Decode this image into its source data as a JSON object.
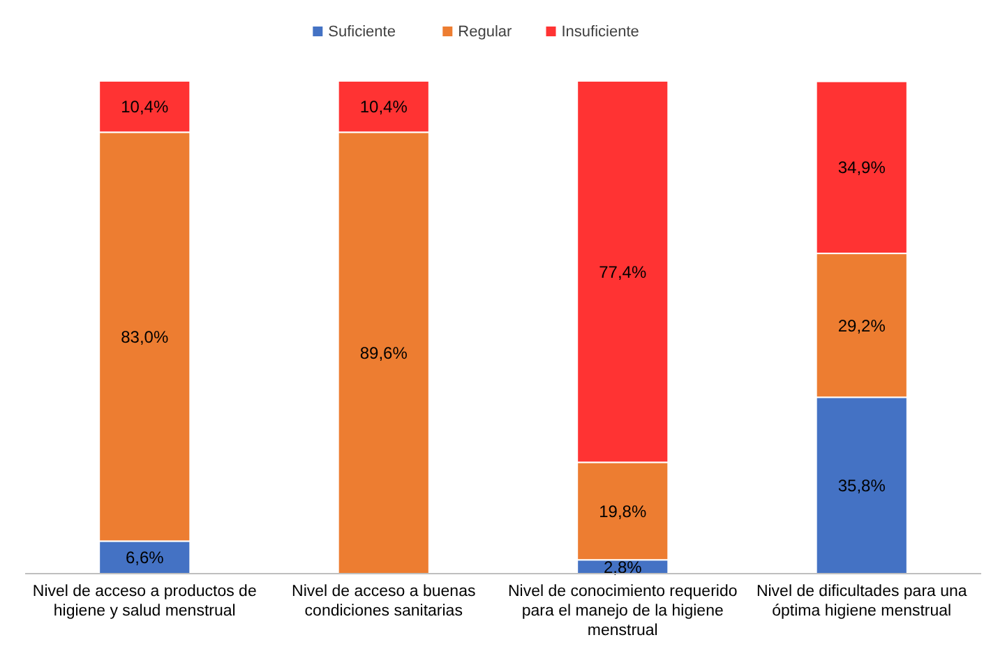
{
  "chart_data": {
    "type": "bar",
    "stacked": true,
    "legend": "top",
    "tick_labels": "x",
    "ylim": [
      0,
      100
    ],
    "categories": [
      "Nivel de acceso a productos de higiene y salud menstrual",
      "Nivel de acceso a buenas condiciones sanitarias",
      "Nivel de conocimiento requerido para el manejo de la higiene menstrual",
      "Nivel de dificultades para una óptima higiene menstrual"
    ],
    "series": [
      {
        "name": "Suficiente",
        "color": "#4472c4",
        "values": [
          6.6,
          null,
          2.8,
          35.8
        ],
        "value_labels": [
          "6,6%",
          null,
          "2,8%",
          "35,8%"
        ]
      },
      {
        "name": "Regular",
        "color": "#ed7d31",
        "values": [
          83.0,
          89.6,
          19.8,
          29.2
        ],
        "value_labels": [
          "83,0%",
          "89,6%",
          "19,8%",
          "29,2%"
        ]
      },
      {
        "name": "Insuficiente",
        "color": "#ff3333",
        "values": [
          10.4,
          10.4,
          77.4,
          34.9
        ],
        "value_labels": [
          "10,4%",
          "10,4%",
          "77,4%",
          "34,9%"
        ]
      }
    ]
  }
}
